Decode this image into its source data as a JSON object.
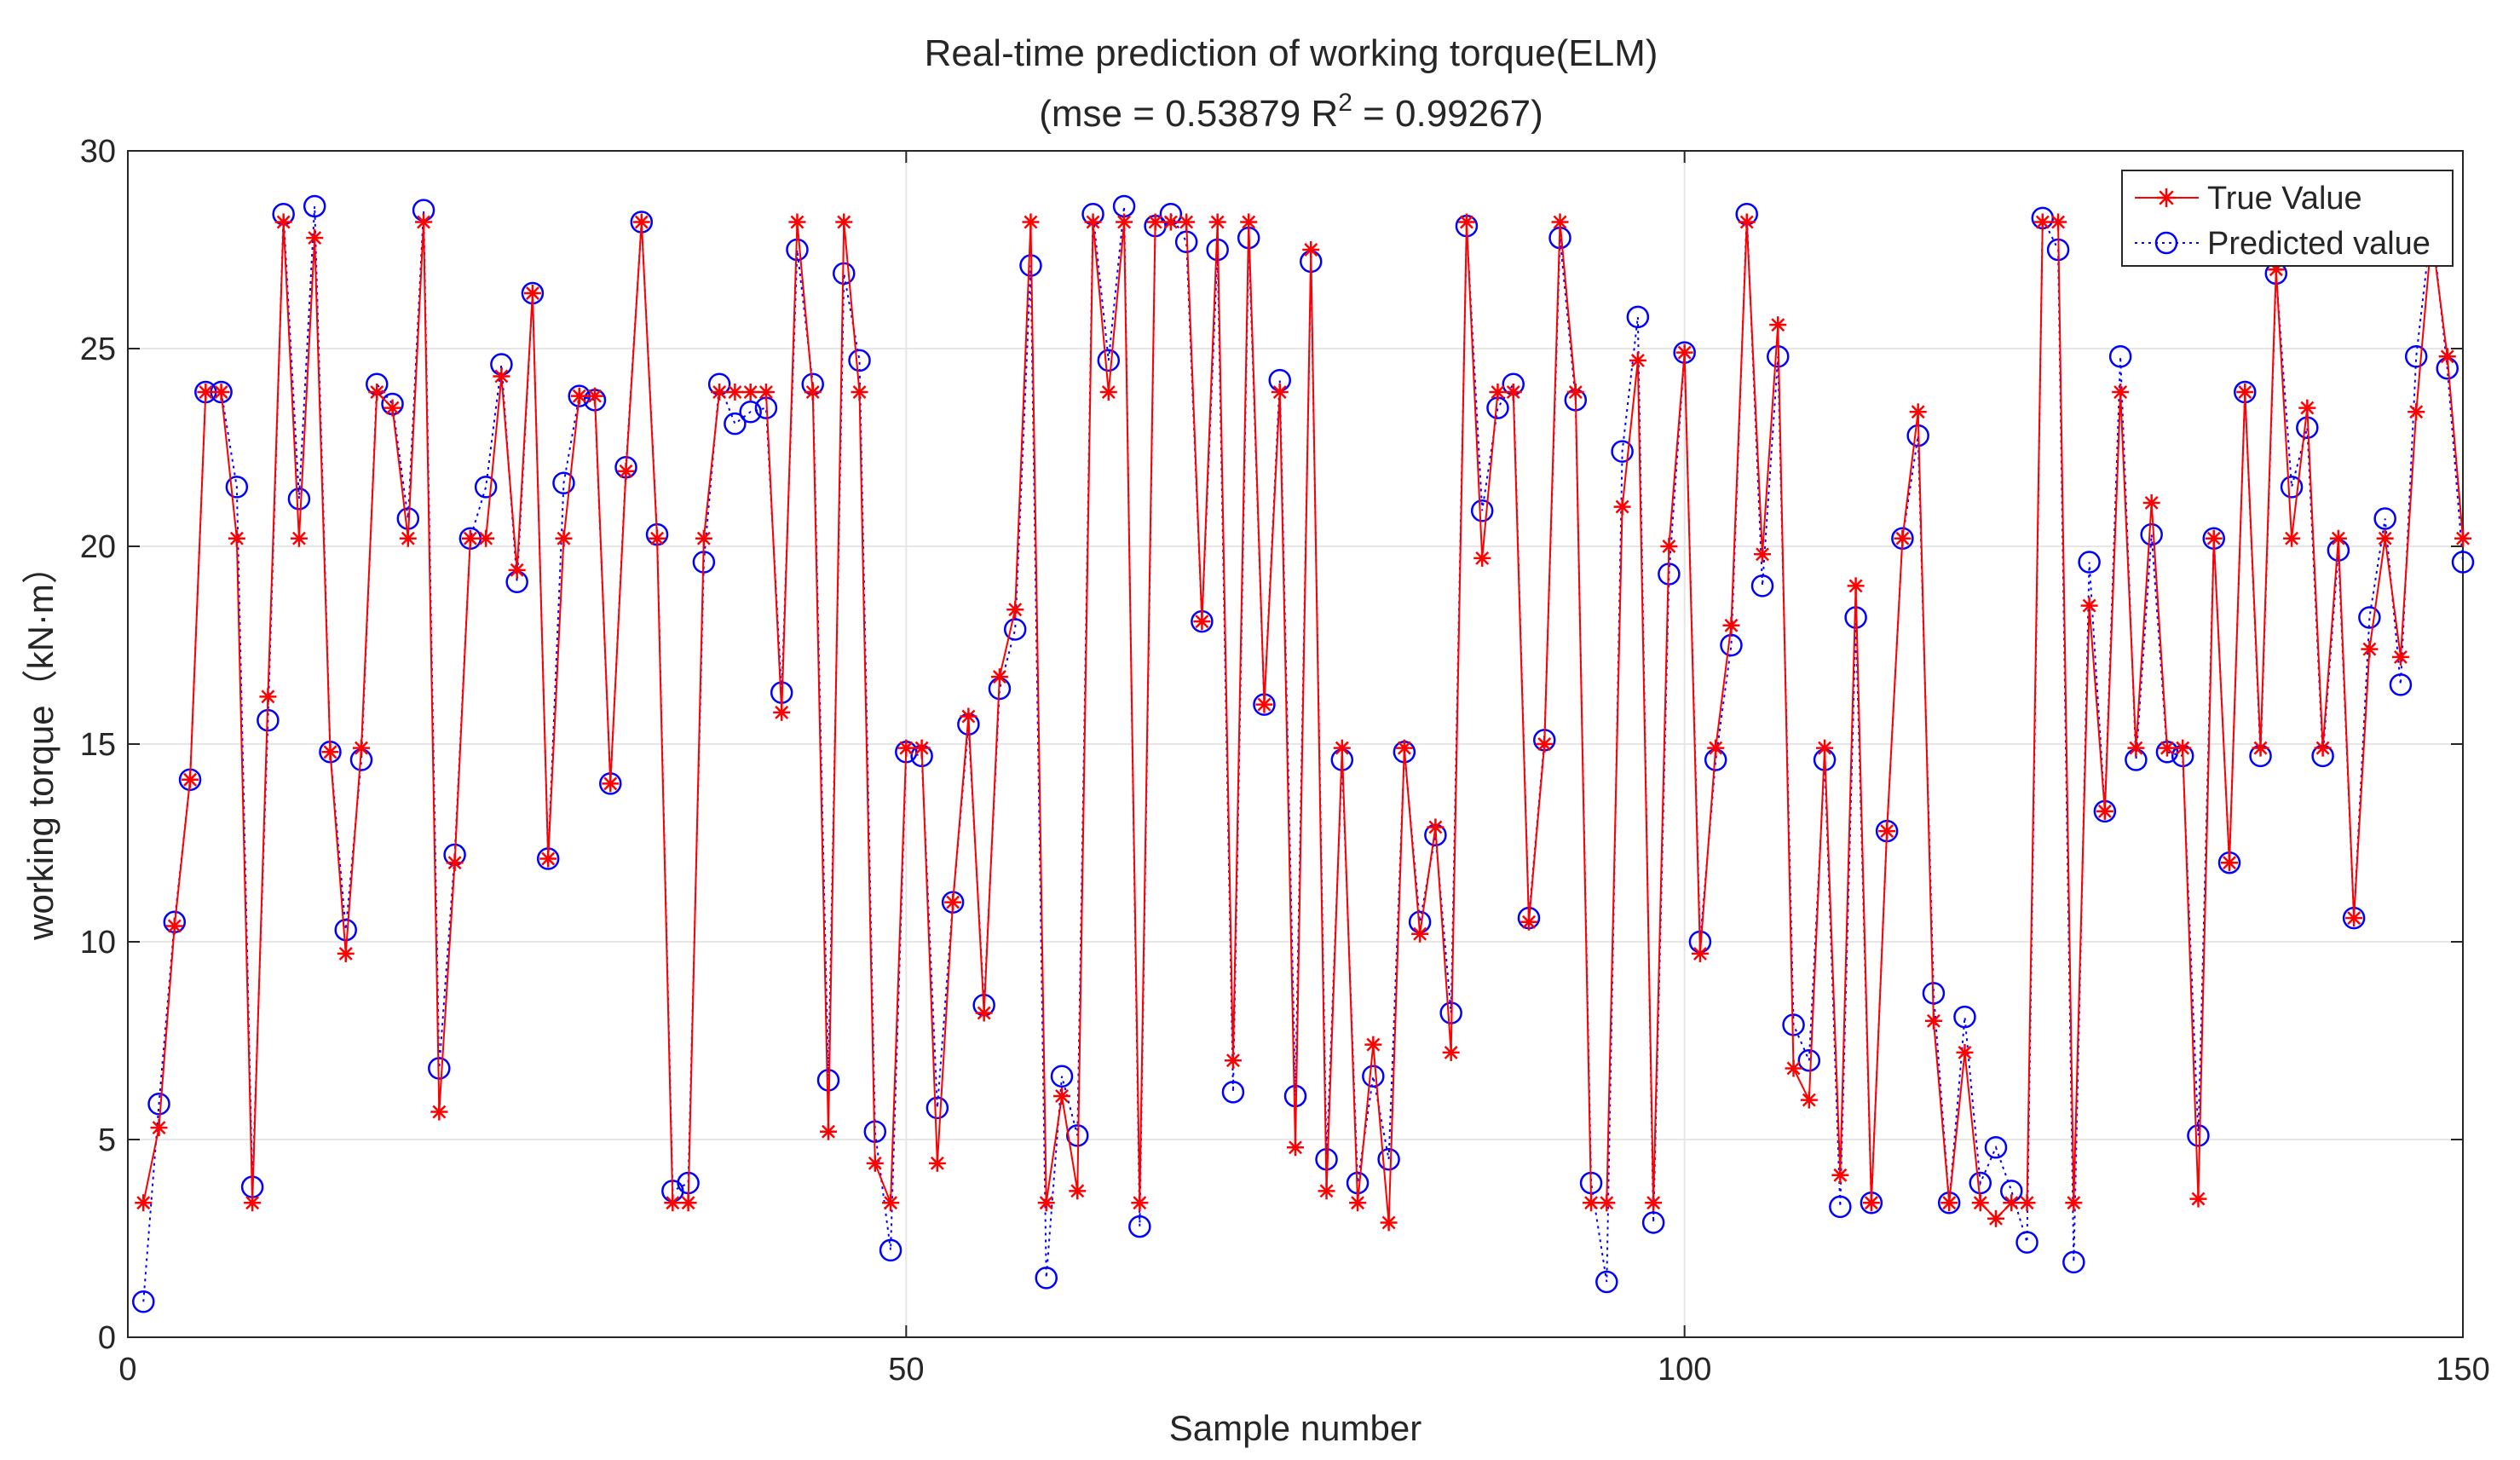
{
  "chart_data": {
    "type": "line",
    "title": "Real-time prediction of working torque(ELM)",
    "subtitle_prefix": "(mse = 0.53879 R",
    "subtitle_sup": "2",
    "subtitle_suffix": " = 0.99267)",
    "xlabel": "Sample number",
    "ylabel": "working torque（kN·m）",
    "xlim": [
      0,
      150
    ],
    "ylim": [
      0,
      30
    ],
    "xticks": [
      0,
      50,
      100,
      150
    ],
    "yticks": [
      0,
      5,
      10,
      15,
      20,
      25,
      30
    ],
    "grid": true,
    "legend_position": "top-right",
    "series": [
      {
        "name": "True Value",
        "color": "#ff0000",
        "marker": "asterisk",
        "line": "solid",
        "values": [
          3.4,
          5.3,
          10.4,
          14.1,
          23.9,
          23.9,
          20.2,
          3.4,
          16.2,
          28.2,
          20.2,
          27.8,
          14.8,
          9.7,
          14.9,
          23.9,
          23.5,
          20.2,
          28.2,
          5.7,
          12.0,
          20.2,
          20.2,
          24.3,
          19.4,
          26.4,
          12.1,
          20.2,
          23.8,
          23.8,
          14.0,
          21.9,
          28.2,
          20.2,
          3.4,
          3.4,
          20.2,
          23.9,
          23.9,
          23.9,
          23.9,
          15.8,
          28.2,
          23.9,
          5.2,
          28.2,
          23.9,
          4.4,
          3.4,
          14.9,
          14.9,
          4.4,
          11.0,
          15.7,
          8.2,
          16.7,
          18.4,
          28.2,
          3.4,
          6.1,
          3.7,
          28.2,
          23.9,
          28.2,
          3.4,
          28.2,
          28.2,
          28.2,
          18.1,
          28.2,
          7.0,
          28.2,
          16.0,
          23.9,
          4.8,
          27.5,
          3.7,
          14.9,
          3.4,
          7.4,
          2.9,
          14.9,
          10.2,
          12.9,
          7.2,
          28.2,
          19.7,
          23.9,
          23.9,
          10.5,
          15.0,
          28.2,
          23.9,
          3.4,
          3.4,
          21.0,
          24.7,
          3.4,
          20.0,
          24.9,
          9.7,
          14.9,
          18.0,
          28.2,
          19.8,
          25.6,
          6.8,
          6.0,
          14.9,
          4.1,
          19.0,
          3.4,
          12.8,
          20.2,
          23.4,
          8.0,
          3.4,
          7.2,
          3.4,
          3.0,
          3.4,
          3.4,
          28.2,
          28.2,
          3.4,
          18.5,
          13.3,
          23.9,
          14.9,
          21.1,
          14.9,
          14.9,
          3.5,
          20.2,
          12.0,
          23.9,
          14.9,
          27.0,
          20.2,
          23.5,
          14.9,
          20.2,
          10.6,
          17.4,
          20.2,
          17.2,
          23.4,
          27.9,
          24.8,
          20.2
        ]
      },
      {
        "name": "Predicted value",
        "color": "#0000ff",
        "marker": "circle",
        "line": "dotted",
        "values": [
          0.9,
          5.9,
          10.5,
          14.1,
          23.9,
          23.9,
          21.5,
          3.8,
          15.6,
          28.4,
          21.2,
          28.6,
          14.8,
          10.3,
          14.6,
          24.1,
          23.6,
          20.7,
          28.5,
          6.8,
          12.2,
          20.2,
          21.5,
          24.6,
          19.1,
          26.4,
          12.1,
          21.6,
          23.8,
          23.7,
          14.0,
          22.0,
          28.2,
          20.3,
          3.7,
          3.9,
          19.6,
          24.1,
          23.1,
          23.4,
          23.5,
          16.3,
          27.5,
          24.1,
          6.5,
          26.9,
          24.7,
          5.2,
          2.2,
          14.8,
          14.7,
          5.8,
          11.0,
          15.5,
          8.4,
          16.4,
          17.9,
          27.1,
          1.5,
          6.6,
          5.1,
          28.4,
          24.7,
          28.6,
          2.8,
          28.1,
          28.4,
          27.7,
          18.1,
          27.5,
          6.2,
          27.8,
          16.0,
          24.2,
          6.1,
          27.2,
          4.5,
          14.6,
          3.9,
          6.6,
          4.5,
          14.8,
          10.5,
          12.7,
          8.2,
          28.1,
          20.9,
          23.5,
          24.1,
          10.6,
          15.1,
          27.8,
          23.7,
          3.9,
          1.4,
          22.4,
          25.8,
          2.9,
          19.3,
          24.9,
          10.0,
          14.6,
          17.5,
          28.4,
          19.0,
          24.8,
          7.9,
          7.0,
          14.6,
          3.3,
          18.2,
          3.4,
          12.8,
          20.2,
          22.8,
          8.7,
          3.4,
          8.1,
          3.9,
          4.8,
          3.7,
          2.4,
          28.3,
          27.5,
          1.9,
          19.6,
          13.3,
          24.8,
          14.6,
          20.3,
          14.8,
          14.7,
          5.1,
          20.2,
          12.0,
          23.9,
          14.7,
          26.9,
          21.5,
          23.0,
          14.7,
          19.9,
          10.6,
          18.2,
          20.7,
          16.5,
          24.8,
          28.2,
          24.5,
          19.6
        ]
      }
    ]
  }
}
